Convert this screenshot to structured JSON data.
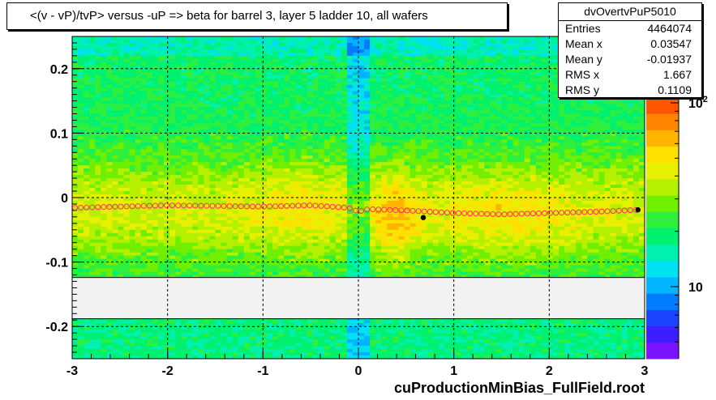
{
  "title": "<(v - vP)/tvP> versus  -uP => beta for barrel 3, layer 5 ladder 10, all wafers",
  "stats": {
    "name": "dvOvertvPuP5010",
    "rows": [
      {
        "key": "Entries",
        "value": "4464074"
      },
      {
        "key": "Mean x",
        "value": "0.03547"
      },
      {
        "key": "Mean y",
        "value": "-0.01937"
      },
      {
        "key": "RMS x",
        "value": "1.667"
      },
      {
        "key": "RMS y",
        "value": "0.1109"
      }
    ]
  },
  "footer": "cuProductionMinBias_FullField.root",
  "chart_data": {
    "type": "heatmap",
    "title": "<(v - vP)/tvP> versus  -uP => beta for barrel 3, layer 5 ladder 10, all wafers",
    "xlabel": "",
    "ylabel": "",
    "xlim": [
      -3,
      3
    ],
    "ylim": [
      -0.25,
      0.25
    ],
    "x_ticks": [
      "-3",
      "-2",
      "-1",
      "0",
      "1",
      "2",
      "3"
    ],
    "y_ticks": [
      "-0.2",
      "-0.1",
      "0",
      "0.1",
      "0.2"
    ],
    "grid": true,
    "color_scale": {
      "type": "log",
      "labels": [
        "10",
        "10^2"
      ],
      "colors": [
        "#7a14ff",
        "#3c1eff",
        "#1a44ff",
        "#007cff",
        "#00b4ff",
        "#00e0f0",
        "#00f0b0",
        "#00f070",
        "#2ef03c",
        "#70f000",
        "#b4f000",
        "#e6f000",
        "#ffe000",
        "#ffb400",
        "#ff8400",
        "#ff5400"
      ]
    },
    "empty_band_y": [
      -0.188,
      -0.124
    ],
    "profile_series": {
      "name": "",
      "x": [
        -3.0,
        -2.5,
        -2.0,
        -1.5,
        -1.0,
        -0.5,
        -0.1,
        0.0,
        0.1,
        0.5,
        1.0,
        1.5,
        2.0,
        2.5,
        2.95
      ],
      "y": [
        -0.016,
        -0.014,
        -0.012,
        -0.013,
        -0.014,
        -0.012,
        -0.016,
        -0.022,
        -0.018,
        -0.02,
        -0.024,
        -0.026,
        -0.024,
        -0.022,
        -0.019
      ]
    },
    "markers": [
      {
        "x": 0.68,
        "y": -0.031
      },
      {
        "x": 2.93,
        "y": -0.019
      }
    ]
  }
}
